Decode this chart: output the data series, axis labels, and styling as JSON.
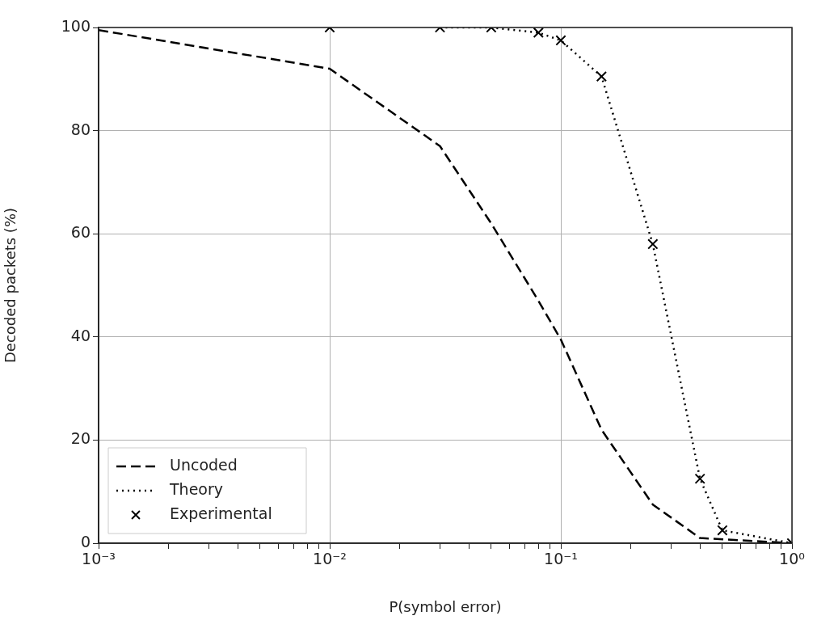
{
  "chart_data": {
    "type": "line",
    "xlabel": "P(symbol error)",
    "ylabel": "Decoded packets (%)",
    "log": "x",
    "grid": true,
    "legend": "bottom left",
    "xlim": [
      0.001,
      1
    ],
    "ylim": [
      0,
      100
    ],
    "xticks": [
      {
        "value": 0.001,
        "label": "10⁻³"
      },
      {
        "value": 0.002,
        "label": null
      },
      {
        "value": 0.003,
        "label": null
      },
      {
        "value": 0.004,
        "label": null
      },
      {
        "value": 0.005,
        "label": null
      },
      {
        "value": 0.006,
        "label": null
      },
      {
        "value": 0.007,
        "label": null
      },
      {
        "value": 0.008,
        "label": null
      },
      {
        "value": 0.009,
        "label": null
      },
      {
        "value": 0.01,
        "label": "10⁻²"
      },
      {
        "value": 0.02,
        "label": null
      },
      {
        "value": 0.03,
        "label": null
      },
      {
        "value": 0.04,
        "label": null
      },
      {
        "value": 0.05,
        "label": null
      },
      {
        "value": 0.06,
        "label": null
      },
      {
        "value": 0.07,
        "label": null
      },
      {
        "value": 0.08,
        "label": null
      },
      {
        "value": 0.09,
        "label": null
      },
      {
        "value": 0.1,
        "label": "10⁻¹"
      },
      {
        "value": 0.2,
        "label": null
      },
      {
        "value": 0.3,
        "label": null
      },
      {
        "value": 0.4,
        "label": null
      },
      {
        "value": 0.5,
        "label": null
      },
      {
        "value": 0.6,
        "label": null
      },
      {
        "value": 0.7,
        "label": null
      },
      {
        "value": 0.8,
        "label": null
      },
      {
        "value": 0.9,
        "label": null
      },
      {
        "value": 1,
        "label": "10⁰"
      }
    ],
    "yticks": [
      0,
      20,
      40,
      60,
      80,
      100
    ],
    "series": [
      {
        "name": "Uncoded",
        "type": "line",
        "color": "#000000",
        "line_style": "dashed",
        "marker": "none",
        "x": [
          0.001,
          0.01,
          0.03,
          0.05,
          0.08,
          0.1,
          0.15,
          0.25,
          0.4,
          1
        ],
        "values": [
          99.5,
          92,
          77,
          62,
          47,
          39.5,
          22,
          7.5,
          1,
          0
        ]
      },
      {
        "name": "Theory",
        "type": "line",
        "color": "#000000",
        "line_style": "dotted",
        "marker": "none",
        "x": [
          0.03,
          0.05,
          0.08,
          0.1,
          0.15,
          0.25,
          0.4,
          0.5,
          1
        ],
        "values": [
          100,
          100,
          99,
          97.5,
          90.5,
          58,
          12.5,
          2.5,
          0
        ]
      },
      {
        "name": "Experimental",
        "type": "scatter",
        "color": "#000000",
        "marker": "cross",
        "x": [
          0.01,
          0.03,
          0.05,
          0.08,
          0.1,
          0.15,
          0.25,
          0.4,
          0.5,
          1
        ],
        "values": [
          100,
          100,
          100,
          99,
          97.5,
          90.5,
          58,
          12.5,
          2.5,
          0
        ]
      }
    ]
  }
}
